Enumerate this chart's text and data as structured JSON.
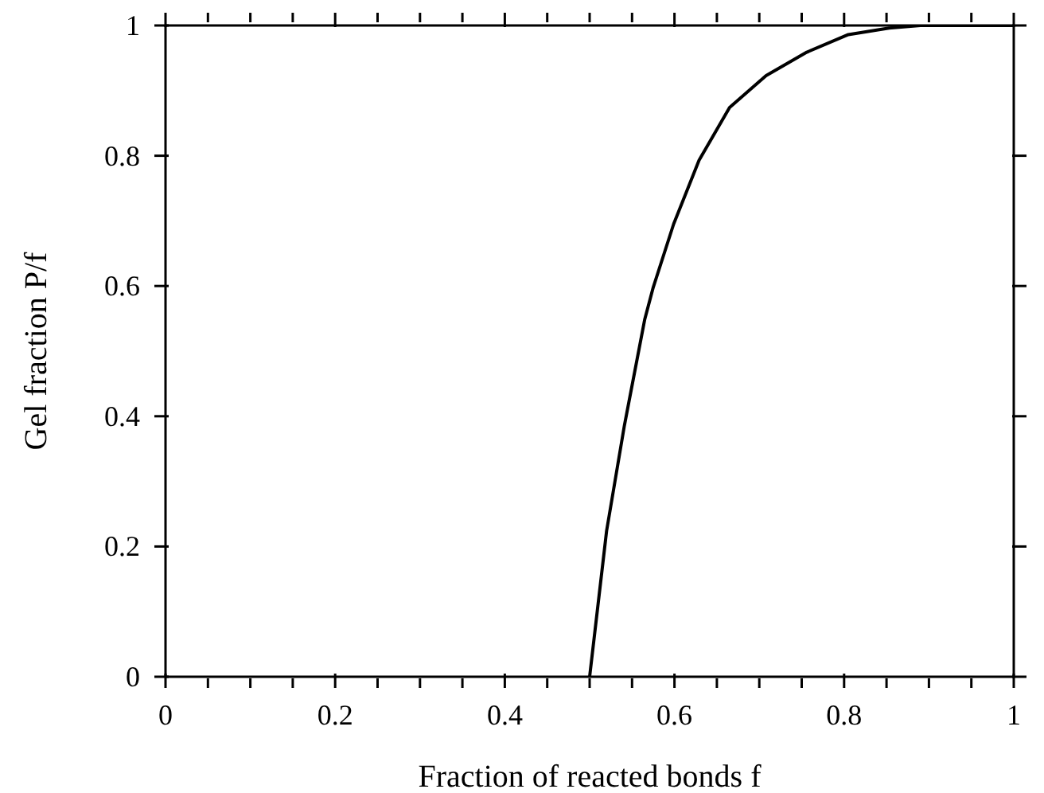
{
  "chart_data": {
    "type": "line",
    "xlabel": "Fraction of reacted bonds f",
    "ylabel": "Gel fraction P/f",
    "x": [
      0.5,
      0.52,
      0.541,
      0.565,
      0.575,
      0.599,
      0.629,
      0.665,
      0.708,
      0.756,
      0.805,
      0.853,
      0.89,
      1.0
    ],
    "series": [
      {
        "color": "#000000",
        "values": [
          0,
          0.224,
          0.386,
          0.549,
          0.598,
          0.695,
          0.793,
          0.874,
          0.923,
          0.959,
          0.986,
          0.996,
          1.0,
          1.0
        ]
      }
    ],
    "xlim": [
      0,
      1
    ],
    "ylim": [
      0,
      1
    ],
    "xticks": [
      0,
      {
        "value": 0.05,
        "label": null
      },
      {
        "value": 0.1,
        "label": null
      },
      {
        "value": 0.15,
        "label": null
      },
      0.2,
      {
        "value": 0.25,
        "label": null
      },
      {
        "value": 0.3,
        "label": null
      },
      {
        "value": 0.35,
        "label": null
      },
      0.4,
      {
        "value": 0.45,
        "label": null
      },
      {
        "value": 0.5,
        "label": null
      },
      {
        "value": 0.55,
        "label": null
      },
      0.6,
      {
        "value": 0.65,
        "label": null
      },
      {
        "value": 0.7,
        "label": null
      },
      {
        "value": 0.75,
        "label": null
      },
      0.8,
      {
        "value": 0.85,
        "label": null
      },
      {
        "value": 0.9,
        "label": null
      },
      {
        "value": 0.95,
        "label": null
      },
      1
    ],
    "yticks": [
      0,
      0.2,
      0.4,
      0.6,
      0.8,
      1
    ],
    "grid": false,
    "legend": false,
    "marker": "none",
    "line_style": "solid"
  }
}
